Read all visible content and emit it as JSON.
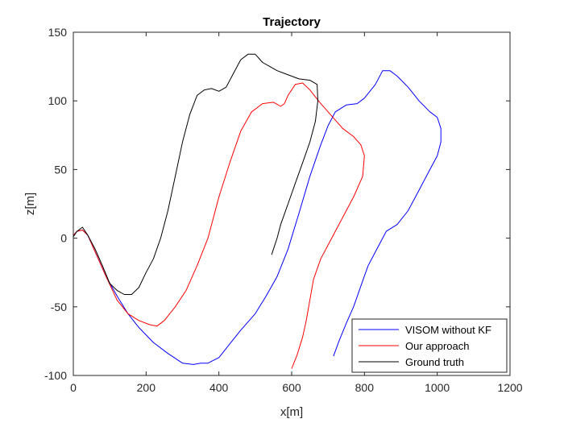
{
  "chart_data": {
    "type": "line",
    "title": "Trajectory",
    "xlabel": "x[m]",
    "ylabel": "z[m]",
    "xlim": [
      0,
      1200
    ],
    "ylim": [
      -100,
      150
    ],
    "xticks": [
      0,
      200,
      400,
      600,
      800,
      1000,
      1200
    ],
    "yticks": [
      -100,
      -50,
      0,
      50,
      100,
      150
    ],
    "xtick_labels": [
      "0",
      "200",
      "400",
      "600",
      "800",
      "1000",
      "1200"
    ],
    "ytick_labels": [
      "-100",
      "-50",
      "0",
      "50",
      "100",
      "150"
    ],
    "grid": false,
    "legend_position": "bottom-right",
    "series": [
      {
        "name": "VISOM without KF",
        "color": "#0000ff",
        "x": [
          0,
          10,
          25,
          40,
          60,
          90,
          120,
          150,
          180,
          220,
          260,
          300,
          330,
          350,
          370,
          400,
          430,
          460,
          500,
          530,
          560,
          590,
          620,
          650,
          680,
          700,
          720,
          750,
          780,
          800,
          830,
          850,
          870,
          890,
          920,
          950,
          980,
          1000,
          1010,
          1010,
          1000,
          980,
          950,
          920,
          890,
          860,
          850,
          840,
          830,
          810,
          790,
          770,
          750,
          730,
          715
        ],
        "y": [
          2,
          5,
          6,
          2,
          -10,
          -28,
          -42,
          -55,
          -65,
          -76,
          -84,
          -91,
          -92,
          -91,
          -91,
          -87,
          -77,
          -67,
          -55,
          -42,
          -28,
          -8,
          18,
          45,
          68,
          82,
          92,
          97,
          98,
          102,
          112,
          122,
          122,
          118,
          110,
          100,
          92,
          88,
          80,
          70,
          60,
          50,
          35,
          20,
          10,
          5,
          0,
          -5,
          -10,
          -20,
          -35,
          -50,
          -62,
          -75,
          -86
        ]
      },
      {
        "name": "Our approach",
        "color": "#ff0000",
        "x": [
          0,
          10,
          25,
          40,
          60,
          90,
          120,
          150,
          180,
          210,
          230,
          250,
          280,
          310,
          340,
          370,
          400,
          430,
          460,
          490,
          520,
          550,
          570,
          580,
          590,
          610,
          630,
          650,
          680,
          710,
          740,
          770,
          790,
          800,
          795,
          770,
          740,
          710,
          680,
          660,
          650,
          640,
          630,
          615,
          600
        ],
        "y": [
          2,
          5,
          6,
          2,
          -10,
          -28,
          -45,
          -55,
          -60,
          -63,
          -64,
          -60,
          -50,
          -38,
          -20,
          0,
          30,
          55,
          78,
          92,
          98,
          99,
          96,
          98,
          104,
          112,
          113,
          108,
          98,
          89,
          80,
          74,
          68,
          60,
          45,
          30,
          15,
          0,
          -15,
          -30,
          -45,
          -60,
          -72,
          -85,
          -95
        ]
      },
      {
        "name": "Ground truth",
        "color": "#000000",
        "x": [
          0,
          10,
          25,
          40,
          60,
          80,
          100,
          120,
          140,
          160,
          180,
          200,
          220,
          240,
          260,
          280,
          300,
          320,
          340,
          360,
          380,
          400,
          420,
          440,
          460,
          480,
          500,
          520,
          540,
          560,
          580,
          600,
          620,
          650,
          670,
          672,
          665,
          650,
          630,
          610,
          590,
          570,
          560,
          550,
          545
        ],
        "y": [
          1,
          5,
          8,
          2,
          -8,
          -20,
          -33,
          -38,
          -41,
          -41,
          -36,
          -25,
          -15,
          0,
          20,
          45,
          70,
          90,
          104,
          108,
          109,
          107,
          110,
          120,
          130,
          134,
          134,
          128,
          125,
          122,
          120,
          118,
          116,
          115,
          112,
          100,
          85,
          70,
          55,
          40,
          25,
          10,
          0,
          -8,
          -12
        ]
      }
    ]
  }
}
